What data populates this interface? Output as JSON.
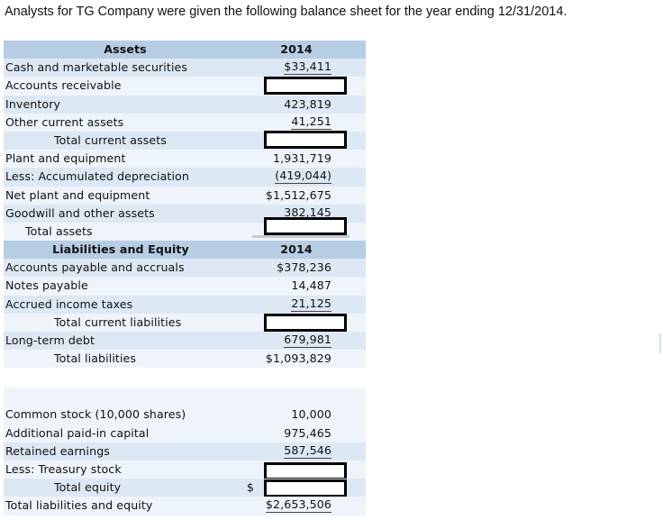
{
  "intro_text": "Analysts for TG Company were given the following balance sheet for the year ending 12/31/2014.",
  "assets_header": {
    "label": "Assets",
    "year": "2014"
  },
  "assets_rows": [
    {
      "label": "Cash and marketable securities",
      "value": "$33,411"
    },
    {
      "label": "Accounts receivable",
      "value": ""
    },
    {
      "label": "Inventory",
      "value": "423,819"
    },
    {
      "label": "Other current assets",
      "value": "41,251"
    },
    {
      "label": "Total current assets",
      "value": ""
    },
    {
      "label": "Plant and equipment",
      "value": "1,931,719"
    },
    {
      "label": "Less: Accumulated depreciation",
      "value": "(419,044)"
    },
    {
      "label": "Net plant and equipment",
      "value": "$1,512,675"
    },
    {
      "label": "Goodwill and other assets",
      "value": "382,145"
    },
    {
      "label": "Total assets",
      "value": ""
    }
  ],
  "liab_header": {
    "label": "Liabilities and Equity",
    "year": "2014"
  },
  "liab_rows": [
    {
      "label": "Accounts payable and accruals",
      "value": "$378,236"
    },
    {
      "label": "Notes payable",
      "value": "14,487"
    },
    {
      "label": "Accrued income taxes",
      "value": "21,125"
    },
    {
      "label": "Total current liabilities",
      "value": ""
    },
    {
      "label": "Long-term debt",
      "value": "679,981"
    },
    {
      "label": "Total liabilities",
      "value": "$1,093,829"
    }
  ],
  "equity_rows": [
    {
      "label": "Common stock (10,000 shares)",
      "value": "10,000"
    },
    {
      "label": "Additional paid-in capital",
      "value": "975,465"
    },
    {
      "label": "Retained earnings",
      "value": "587,546"
    },
    {
      "label": "Less: Treasury stock",
      "value": ""
    },
    {
      "label": "Total equity",
      "value": "$"
    },
    {
      "label": "Total liabilities and equity",
      "value": "$2,653,506"
    }
  ]
}
